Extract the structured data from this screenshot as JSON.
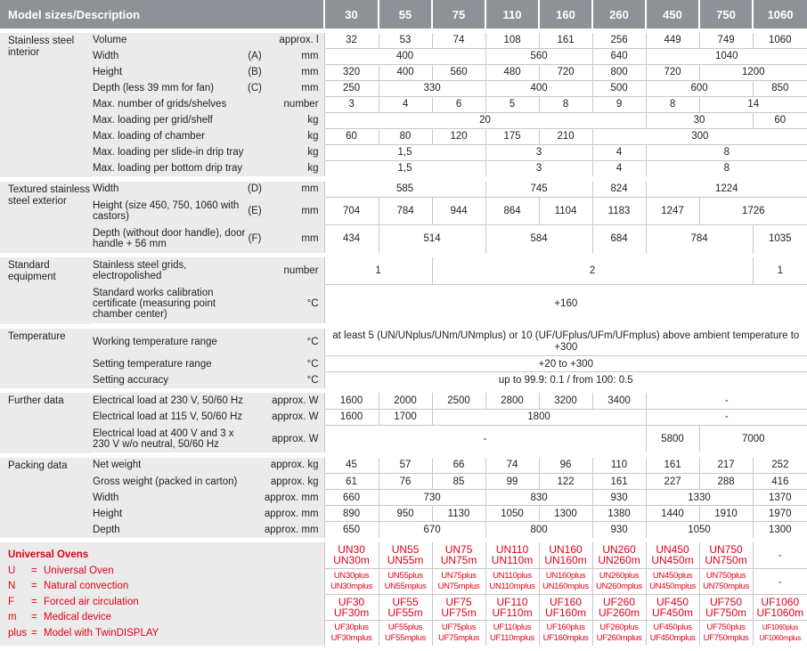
{
  "header": {
    "title": "Model sizes/Description",
    "sizes": [
      "30",
      "55",
      "75",
      "110",
      "160",
      "260",
      "450",
      "750",
      "1060"
    ]
  },
  "stainless_interior": {
    "label": "Stainless steel interior",
    "volume": {
      "label": "Volume",
      "unit": "approx. l",
      "v": [
        "32",
        "53",
        "74",
        "108",
        "161",
        "256",
        "449",
        "749",
        "1060"
      ]
    },
    "width": {
      "label": "Width",
      "mark": "(A)",
      "unit": "mm",
      "v": [
        "400",
        "560",
        "640",
        "1040"
      ]
    },
    "height": {
      "label": "Height",
      "mark": "(B)",
      "unit": "mm",
      "v": [
        "320",
        "400",
        "560",
        "480",
        "720",
        "800",
        "720",
        "1200"
      ]
    },
    "depth": {
      "label": "Depth (less 39 mm for fan)",
      "mark": "(C)",
      "unit": "mm",
      "v": [
        "250",
        "330",
        "400",
        "500",
        "600",
        "850"
      ]
    },
    "grids": {
      "label": "Max. number of grids/shelves",
      "unit": "number",
      "v": [
        "3",
        "4",
        "6",
        "5",
        "8",
        "9",
        "8",
        "14"
      ]
    },
    "load_grid": {
      "label": "Max. loading per grid/shelf",
      "unit": "kg",
      "v": [
        "20",
        "30",
        "60"
      ]
    },
    "load_chamber": {
      "label": "Max. loading of chamber",
      "unit": "kg",
      "v": [
        "60",
        "80",
        "120",
        "175",
        "210",
        "300"
      ]
    },
    "load_slidein": {
      "label": "Max. loading per slide-in drip tray",
      "unit": "kg",
      "v": [
        "1,5",
        "3",
        "4",
        "8"
      ]
    },
    "load_bottom": {
      "label": "Max. loading per bottom drip tray",
      "unit": "kg",
      "v": [
        "1,5",
        "3",
        "4",
        "8"
      ]
    }
  },
  "exterior": {
    "label": "Textured stainless steel exterior",
    "width": {
      "label": "Width",
      "mark": "(D)",
      "unit": "mm",
      "v": [
        "585",
        "745",
        "824",
        "1224"
      ]
    },
    "height": {
      "label": "Height (size 450, 750, 1060 with castors)",
      "mark": "(E)",
      "unit": "mm",
      "v": [
        "704",
        "784",
        "944",
        "864",
        "1104",
        "1183",
        "1247",
        "1726"
      ]
    },
    "depth": {
      "label": "Depth (without door handle), door handle + 56 mm",
      "mark": "(F)",
      "unit": "mm",
      "v": [
        "434",
        "514",
        "584",
        "684",
        "784",
        "1035"
      ]
    }
  },
  "standard_equipment": {
    "label": "Standard equipment",
    "grids": {
      "label": "Stainless steel grids, electropolished",
      "unit": "number",
      "v": [
        "1",
        "2",
        "1"
      ]
    },
    "cert": {
      "label": "Standard works calibration certificate (measuring point chamber center)",
      "unit": "°C",
      "v": [
        "+160"
      ]
    }
  },
  "temperature": {
    "label": "Temperature",
    "working": {
      "label": "Working temperature range",
      "unit": "°C",
      "v": [
        "at least 5 (UN/UNplus/UNm/UNmplus) or 10 (UF/UFplus/UFm/UFmplus) above ambient temperature to +300"
      ]
    },
    "setting": {
      "label": "Setting temperature range",
      "unit": "°C",
      "v": [
        "+20 to +300"
      ]
    },
    "accuracy": {
      "label": "Setting accuracy",
      "unit": "°C",
      "v": [
        "up to 99.9: 0.1 / from 100: 0.5"
      ]
    }
  },
  "further": {
    "label": "Further data",
    "load230": {
      "label": "Electrical load at 230 V, 50/60 Hz",
      "unit": "approx. W",
      "v": [
        "1600",
        "2000",
        "2500",
        "2800",
        "3200",
        "3400",
        "-"
      ]
    },
    "load115": {
      "label": "Electrical load at 115 V, 50/60 Hz",
      "unit": "approx. W",
      "v": [
        "1600",
        "1700",
        "1800",
        "-"
      ]
    },
    "load400": {
      "label": "Electrical load at 400 V and 3 x 230 V w/o neutral, 50/60 Hz",
      "unit": "approx. W",
      "v": [
        "-",
        "5800",
        "7000"
      ]
    }
  },
  "packing": {
    "label": "Packing data",
    "net": {
      "label": "Net weight",
      "unit": "approx. kg",
      "v": [
        "45",
        "57",
        "66",
        "74",
        "96",
        "110",
        "161",
        "217",
        "252"
      ]
    },
    "gross": {
      "label": "Gross weight (packed in carton)",
      "unit": "approx. kg",
      "v": [
        "61",
        "76",
        "85",
        "99",
        "122",
        "161",
        "227",
        "288",
        "416"
      ]
    },
    "width": {
      "label": "Width",
      "unit": "approx. mm",
      "v": [
        "660",
        "730",
        "830",
        "930",
        "1330",
        "1370"
      ]
    },
    "height": {
      "label": "Height",
      "unit": "approx. mm",
      "v": [
        "890",
        "950",
        "1130",
        "1050",
        "1300",
        "1380",
        "1440",
        "1910",
        "1970"
      ]
    },
    "depth": {
      "label": "Depth",
      "unit": "approx. mm",
      "v": [
        "650",
        "670",
        "800",
        "930",
        "1050",
        "1300"
      ]
    }
  },
  "legend": {
    "title": "Universal Ovens",
    "items": [
      {
        "k": "U",
        "eq": "=",
        "t": "Universal Oven"
      },
      {
        "k": "N",
        "eq": "=",
        "t": "Natural convection"
      },
      {
        "k": "F",
        "eq": "=",
        "t": "Forced air circulation"
      },
      {
        "k": "m",
        "eq": "=",
        "t": "Medical device"
      },
      {
        "k": "plus",
        "eq": "=",
        "t": "Model with TwinDISPLAY"
      }
    ]
  },
  "models": {
    "un": [
      [
        "UN30",
        "UN30m"
      ],
      [
        "UN55",
        "UN55m"
      ],
      [
        "UN75",
        "UN75m"
      ],
      [
        "UN110",
        "UN110m"
      ],
      [
        "UN160",
        "UN160m"
      ],
      [
        "UN260",
        "UN260m"
      ],
      [
        "UN450",
        "UN450m"
      ],
      [
        "UN750",
        "UN750m"
      ],
      [
        "-",
        ""
      ]
    ],
    "unplus": [
      [
        "UN30plus",
        "UN30mplus"
      ],
      [
        "UN55plus",
        "UN55mplus"
      ],
      [
        "UN75plus",
        "UN75mplus"
      ],
      [
        "UN110plus",
        "UN110mplus"
      ],
      [
        "UN160plus",
        "UN160mplus"
      ],
      [
        "UN260plus",
        "UN260mplus"
      ],
      [
        "UN450plus",
        "UN450mplus"
      ],
      [
        "UN750plus",
        "UN750mplus"
      ],
      [
        "-",
        ""
      ]
    ],
    "uf": [
      [
        "UF30",
        "UF30m"
      ],
      [
        "UF55",
        "UF55m"
      ],
      [
        "UF75",
        "UF75m"
      ],
      [
        "UF110",
        "UF110m"
      ],
      [
        "UF160",
        "UF160m"
      ],
      [
        "UF260",
        "UF260m"
      ],
      [
        "UF450",
        "UF450m"
      ],
      [
        "UF750",
        "UF750m"
      ],
      [
        "UF1060",
        "UF1060m"
      ]
    ],
    "ufplus": [
      [
        "UF30plus",
        "UF30mplus"
      ],
      [
        "UF55plus",
        "UF55mplus"
      ],
      [
        "UF75plus",
        "UF75mplus"
      ],
      [
        "UF110plus",
        "UF110mplus"
      ],
      [
        "UF160plus",
        "UF160mplus"
      ],
      [
        "UF260plus",
        "UF260mplus"
      ],
      [
        "UF450plus",
        "UF450mplus"
      ],
      [
        "UF750plus",
        "UF750mplus"
      ],
      [
        "UF1060plus",
        "UF1060mplus"
      ]
    ]
  },
  "colors": {
    "header_bg": "#8e9195",
    "label_bg": "#ebebeb",
    "accent": "#e2001a"
  }
}
